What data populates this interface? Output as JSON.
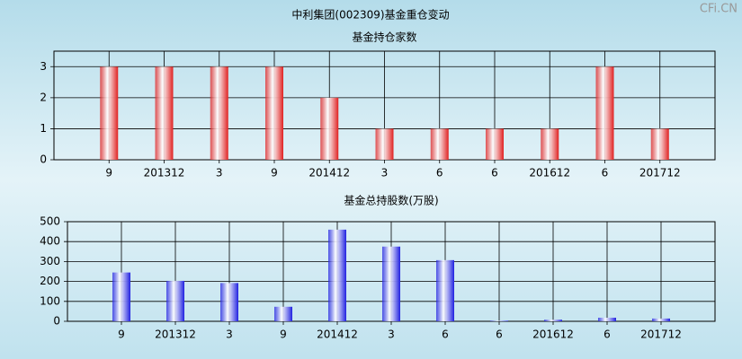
{
  "title": "中利集团(002309)基金重仓变动",
  "watermark": "CFi.CN",
  "chart_data": [
    {
      "type": "bar",
      "title": "基金持仓家数",
      "categories": [
        "9",
        "201312",
        "3",
        "9",
        "201412",
        "3",
        "6",
        "6",
        "201612",
        "6",
        "201712"
      ],
      "values": [
        3,
        3,
        3,
        3,
        2,
        1,
        1,
        1,
        1,
        3,
        1
      ],
      "color": "#e02020",
      "ylim": [
        0,
        3.5
      ],
      "yticks": [
        0,
        1,
        2,
        3
      ],
      "grid": true
    },
    {
      "type": "bar",
      "title": "基金总持股数(万股)",
      "categories": [
        "9",
        "201312",
        "3",
        "9",
        "201412",
        "3",
        "6",
        "6",
        "201612",
        "6",
        "201712"
      ],
      "values": [
        245,
        203,
        192,
        73,
        460,
        375,
        307,
        3,
        8,
        18,
        14
      ],
      "color": "#2020e0",
      "ylim": [
        0,
        500
      ],
      "yticks": [
        0,
        100,
        200,
        300,
        400,
        500
      ],
      "grid": true
    }
  ]
}
